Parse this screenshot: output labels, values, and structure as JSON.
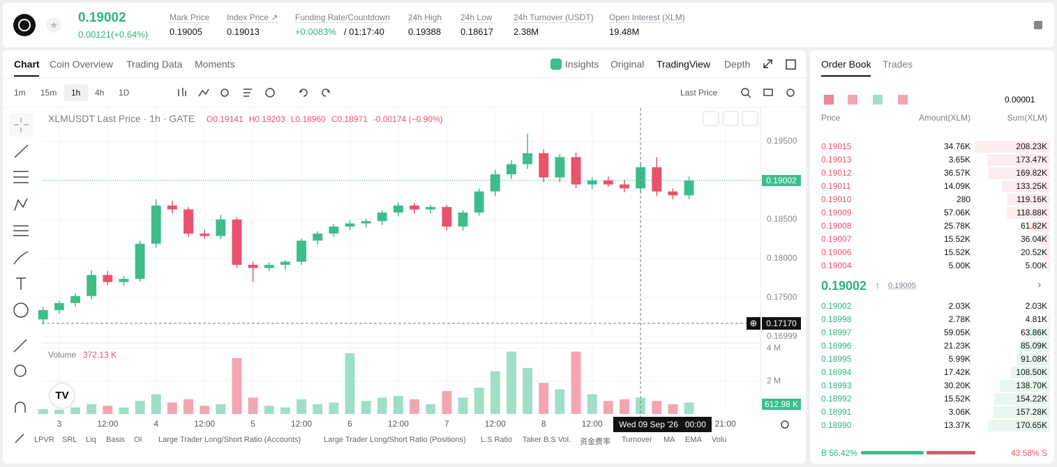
{
  "header": {
    "price": "0.19002",
    "change": "0.00121(+0.64%)",
    "stats": [
      {
        "label": "Mark Price",
        "value": "0.19005"
      },
      {
        "label": "Index Price ↗",
        "value": "0.19013"
      },
      {
        "label": "Funding Rate/Countdown",
        "value": "+0.0083%",
        "extra": "/ 01:17:40"
      },
      {
        "label": "24h High",
        "value": "0.19388"
      },
      {
        "label": "24h Low",
        "value": "0.18617"
      },
      {
        "label": "24h Turnover (USDT)",
        "value": "2.38M"
      },
      {
        "label": "Open Interest (XLM)",
        "value": "19.48M"
      }
    ]
  },
  "chart_tabs": [
    "Chart",
    "Coin Overview",
    "Trading Data",
    "Moments"
  ],
  "view_tabs": [
    "Insights",
    "Original",
    "TradingView",
    "Depth"
  ],
  "intervals": [
    "1m",
    "15m",
    "1h",
    "4h",
    "1D"
  ],
  "price_type": "Last Price",
  "legend": {
    "symbol": "XLMUSDT Last Price · 1h · GATE",
    "open": "O0.19141",
    "high": "H0.19203",
    "low": "L0.18960",
    "close": "C0.18971",
    "change": "-0.00174 (−0.90%)"
  },
  "volume_title": "Volume",
  "volume_value": "372.13 K",
  "last_price_tag": "0.19002",
  "cursor_price_tag": "0.17170",
  "volume_tag": "612.98 K",
  "crosshair_time": "Wed 09 Sep '26   00:00",
  "indicators": [
    "LPVR",
    "SRL",
    "Liq",
    "Basis",
    "OI",
    "Large Trader Long/Short Ratio (Accounts)",
    "Large Trader Long/Short Ratio (Positions)",
    "L.S Ratio",
    "Taker B.S Vol.",
    "资金费率",
    "Turnover",
    "MA",
    "EMA",
    "Volu"
  ],
  "order_book": {
    "tabs": [
      "Order Book",
      "Trades"
    ],
    "precision": "0.00001",
    "columns": [
      "Price",
      "Amount(XLM)",
      "Sum(XLM)"
    ],
    "asks": [
      [
        "0.19015",
        "34.76K",
        "208.23K"
      ],
      [
        "0.19013",
        "3.65K",
        "173.47K"
      ],
      [
        "0.19012",
        "36.57K",
        "169.82K"
      ],
      [
        "0.19011",
        "14.09K",
        "133.25K"
      ],
      [
        "0.19010",
        "280",
        "119.16K"
      ],
      [
        "0.19009",
        "57.06K",
        "118.88K"
      ],
      [
        "0.19008",
        "25.78K",
        "61.82K"
      ],
      [
        "0.19007",
        "15.52K",
        "36.04K"
      ],
      [
        "0.19006",
        "15.52K",
        "20.52K"
      ],
      [
        "0.19004",
        "5.00K",
        "5.00K"
      ]
    ],
    "mid_price": "0.19002",
    "mark_price": "0.19005",
    "bids": [
      [
        "0.19002",
        "2.03K",
        "2.03K"
      ],
      [
        "0.18998",
        "2.78K",
        "4.81K"
      ],
      [
        "0.18997",
        "59.05K",
        "63.86K"
      ],
      [
        "0.18996",
        "21.23K",
        "85.09K"
      ],
      [
        "0.18995",
        "5.99K",
        "91.08K"
      ],
      [
        "0.18994",
        "17.42K",
        "108.50K"
      ],
      [
        "0.18993",
        "30.20K",
        "138.70K"
      ],
      [
        "0.18992",
        "15.52K",
        "154.22K"
      ],
      [
        "0.18991",
        "3.06K",
        "157.28K"
      ],
      [
        "0.18990",
        "13.37K",
        "170.65K"
      ]
    ],
    "buy_ratio": "B 56.42%",
    "sell_ratio": "43.58% S"
  },
  "chart_data": {
    "type": "candlestick",
    "x": [
      -4,
      0,
      4,
      8,
      12,
      16,
      20,
      24,
      28,
      32,
      36,
      40,
      44,
      48,
      52,
      56,
      60,
      64,
      68,
      72,
      76,
      80,
      84,
      88,
      92,
      96,
      100,
      104,
      108,
      112,
      116,
      120,
      124,
      128,
      132,
      136,
      140,
      144,
      148,
      152,
      156
    ],
    "open": [
      0.1722,
      0.1734,
      0.1743,
      0.1752,
      0.1779,
      0.177,
      0.1774,
      0.1819,
      0.1868,
      0.1863,
      0.1832,
      0.1829,
      0.185,
      0.1792,
      0.1788,
      0.1792,
      0.1796,
      0.1823,
      0.1832,
      0.1841,
      0.1845,
      0.1848,
      0.1859,
      0.1868,
      0.1863,
      0.1866,
      0.1841,
      0.1859,
      0.1886,
      0.1908,
      0.1921,
      0.1935,
      0.1904,
      0.193,
      0.1895,
      0.19,
      0.1895,
      0.189,
      0.1917,
      0.1886,
      0.1881
    ],
    "high": [
      0.1738,
      0.1746,
      0.1756,
      0.1785,
      0.1784,
      0.1778,
      0.1823,
      0.1876,
      0.1874,
      0.1866,
      0.1837,
      0.1856,
      0.1853,
      0.1796,
      0.1795,
      0.1798,
      0.1826,
      0.1835,
      0.1844,
      0.1849,
      0.1851,
      0.1862,
      0.1872,
      0.1871,
      0.1869,
      0.1869,
      0.1862,
      0.189,
      0.1914,
      0.1926,
      0.196,
      0.194,
      0.1934,
      0.1936,
      0.1904,
      0.1905,
      0.1901,
      0.1922,
      0.193,
      0.189,
      0.1905
    ],
    "low": [
      0.1716,
      0.1729,
      0.1738,
      0.1748,
      0.1766,
      0.1765,
      0.177,
      0.1814,
      0.1858,
      0.1828,
      0.1825,
      0.1825,
      0.1788,
      0.177,
      0.1784,
      0.1786,
      0.1792,
      0.1818,
      0.1828,
      0.1836,
      0.184,
      0.1843,
      0.1854,
      0.1858,
      0.1858,
      0.1836,
      0.1836,
      0.1855,
      0.188,
      0.1902,
      0.1915,
      0.1898,
      0.1898,
      0.189,
      0.1889,
      0.1892,
      0.1885,
      0.1885,
      0.188,
      0.1876,
      0.1876
    ],
    "close": [
      0.1734,
      0.1743,
      0.1752,
      0.1779,
      0.177,
      0.1774,
      0.1819,
      0.1868,
      0.1863,
      0.1832,
      0.1829,
      0.185,
      0.1792,
      0.1788,
      0.1792,
      0.1796,
      0.1823,
      0.1832,
      0.1841,
      0.1845,
      0.1848,
      0.1859,
      0.1868,
      0.1863,
      0.1866,
      0.1841,
      0.1859,
      0.1886,
      0.1908,
      0.1921,
      0.1935,
      0.1904,
      0.193,
      0.1895,
      0.19,
      0.1895,
      0.189,
      0.1917,
      0.1886,
      0.1881,
      0.19
    ],
    "volume": [
      300000,
      250000,
      400000,
      600000,
      500000,
      400000,
      800000,
      1200000,
      700000,
      900000,
      500000,
      600000,
      3400000,
      1000000,
      500000,
      400000,
      900000,
      600000,
      700000,
      3700000,
      800000,
      1000000,
      1100000,
      900000,
      600000,
      1400000,
      1000000,
      1600000,
      2600000,
      3800000,
      2800000,
      1900000,
      1500000,
      3800000,
      1200000,
      800000,
      900000,
      1000000,
      800000,
      600000,
      700000
    ],
    "up_color": "#3dbd8c",
    "down_color": "#e8526b",
    "up_volume_color": "#9fdfc5",
    "down_volume_color": "#f4a5b2",
    "xlim": [
      -4.3,
      173.7
    ],
    "xticks": [
      {
        "value": 0,
        "label": "3"
      },
      {
        "value": 12,
        "label": "12:00"
      },
      {
        "value": 24,
        "label": "4"
      },
      {
        "value": 36,
        "label": "12:00"
      },
      {
        "value": 48,
        "label": "5"
      },
      {
        "value": 60,
        "label": "12:00"
      },
      {
        "value": 72,
        "label": "6"
      },
      {
        "value": 84,
        "label": "12:00"
      },
      {
        "value": 96,
        "label": "7"
      },
      {
        "value": 108,
        "label": "12:00"
      },
      {
        "value": 120,
        "label": "8"
      },
      {
        "value": 132,
        "label": "12:00"
      },
      {
        "value": 165,
        "label": "21:00"
      }
    ],
    "ylim": [
      0.16937,
      0.19929
    ],
    "yticks": [
      {
        "value": 0.16999,
        "label": "0.16999"
      },
      {
        "value": 0.175,
        "label": "0.17500"
      },
      {
        "value": 0.18,
        "label": "0.18000"
      },
      {
        "value": 0.185,
        "label": "0.18500"
      },
      {
        "value": 0.19,
        "label": "0.19000"
      },
      {
        "value": 0.195,
        "label": "0.19500"
      }
    ],
    "last_price": 0.19002,
    "cursor_price": 0.1717,
    "cursor_x": 144,
    "y2lim": [
      0,
      4200000
    ],
    "y2ticks": [
      {
        "value": 2000000,
        "label": "2 M"
      },
      {
        "value": 4000000,
        "label": "4 M"
      }
    ]
  }
}
